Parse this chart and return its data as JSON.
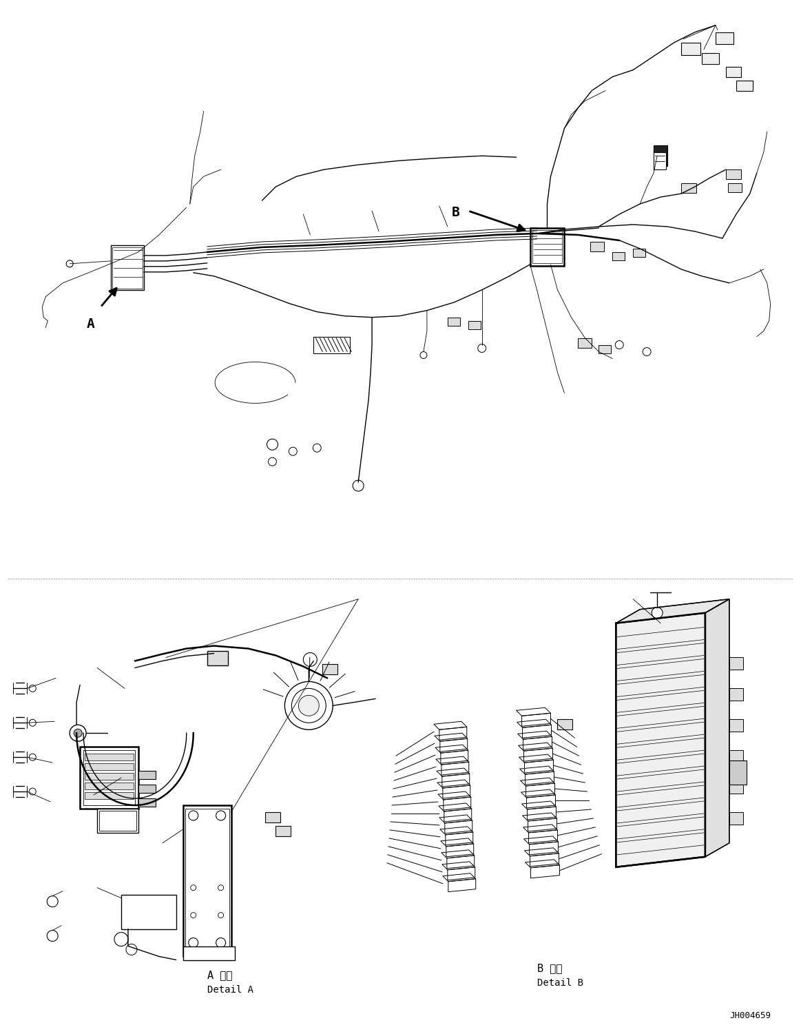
{
  "bg_color": "#ffffff",
  "line_color": "#000000",
  "fig_width": 11.63,
  "fig_height": 14.88,
  "dpi": 100,
  "label_A": "A",
  "label_B": "B",
  "detail_A_title": "A 詳細",
  "detail_A_subtitle": "Detail A",
  "detail_B_title": "B 詳細",
  "detail_B_subtitle": "Detail B",
  "part_number": "JH004659",
  "lw": 1.0,
  "lw_thick": 1.8,
  "lw_thin": 0.6
}
